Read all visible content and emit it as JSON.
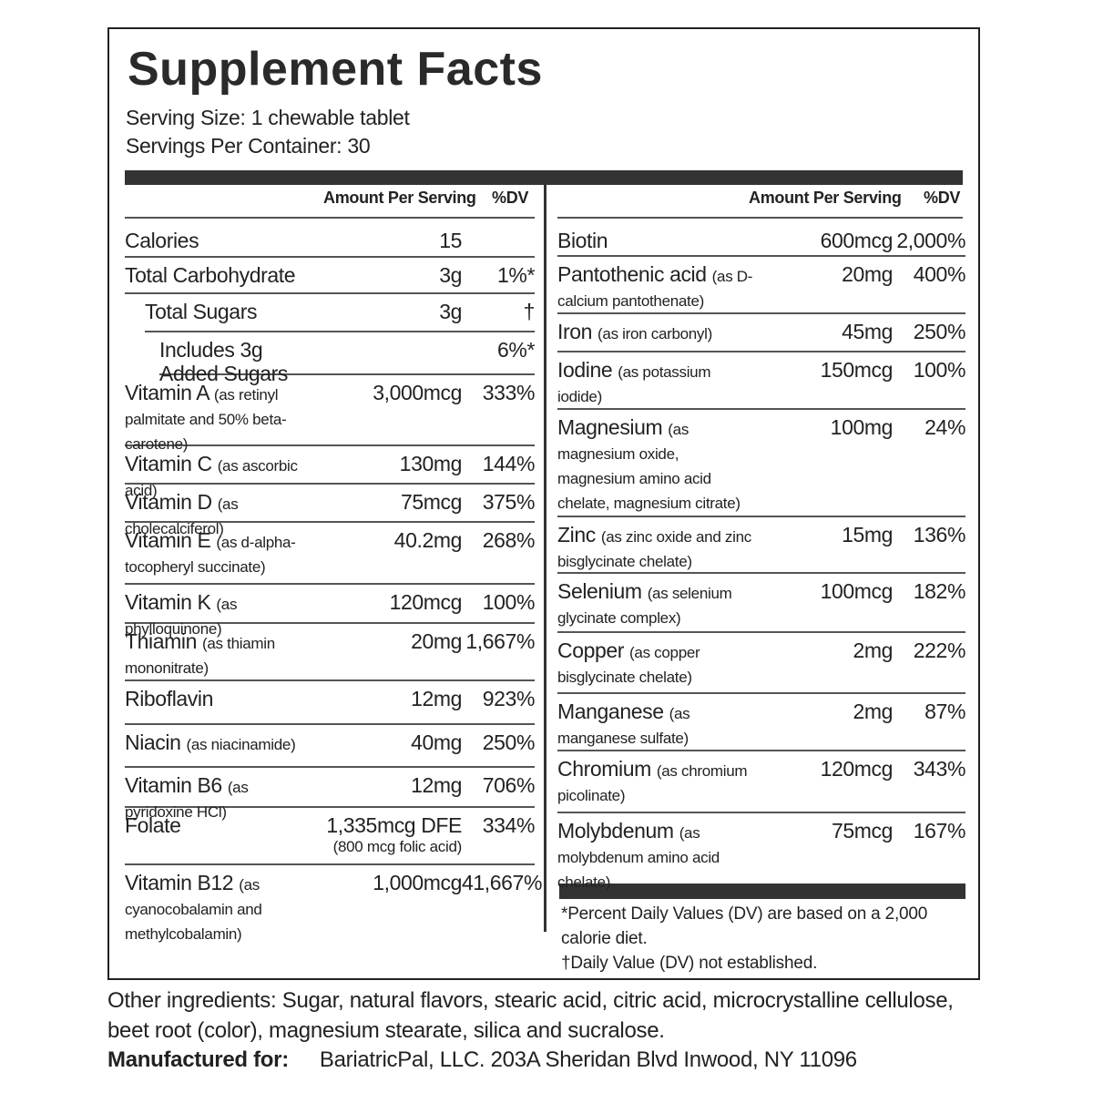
{
  "title": "Supplement Facts",
  "serving_size": "Serving Size: 1 chewable tablet",
  "servings_per_container": "Servings Per Container: 30",
  "left": {
    "header_amount": "Amount Per Serving",
    "header_dv": "%DV",
    "rows": [
      {
        "name": "Calories",
        "amount": "15"
      },
      {
        "name": "Total Carbohydrate",
        "amount": "3g",
        "dv": "1%*"
      },
      {
        "name": "Total Sugars",
        "amount": "3g",
        "dv": "†"
      },
      {
        "name": "Includes 3g Added Sugars",
        "dv": "6%*"
      },
      {
        "name": "Vitamin A",
        "note": "(as retinyl palmitate and 50% beta-carotene)",
        "amount": "3,000mcg",
        "dv": "333%"
      },
      {
        "name": "Vitamin C",
        "note": "(as ascorbic acid)",
        "amount": "130mg",
        "dv": "144%"
      },
      {
        "name": "Vitamin D",
        "note": "(as cholecalciferol)",
        "amount": "75mcg",
        "dv": "375%"
      },
      {
        "name": "Vitamin E",
        "note": "(as d-alpha-tocopheryl succinate)",
        "amount": "40.2mg",
        "dv": "268%"
      },
      {
        "name": "Vitamin K",
        "note": "(as phylloquinone)",
        "amount": "120mcg",
        "dv": "100%"
      },
      {
        "name": "Thiamin",
        "note": "(as thiamin mononitrate)",
        "amount": "20mg",
        "dv": "1,667%"
      },
      {
        "name": "Riboflavin",
        "amount": "12mg",
        "dv": "923%"
      },
      {
        "name": "Niacin",
        "note": "(as niacinamide)",
        "amount": "40mg",
        "dv": "250%"
      },
      {
        "name": "Vitamin B6",
        "note": "(as pyridoxine HCl)",
        "amount": "12mg",
        "dv": "706%"
      },
      {
        "name": "Folate",
        "amount": "1,335mcg DFE",
        "amount_note": "(800 mcg folic acid)",
        "dv": "334%"
      },
      {
        "name": "Vitamin B12",
        "note": "(as cyanocobalamin and methylcobalamin)",
        "amount": "1,000mcg",
        "dv": "41,667%"
      }
    ]
  },
  "right": {
    "header_amount": "Amount Per Serving",
    "header_dv": "%DV",
    "rows": [
      {
        "name": "Biotin",
        "amount": "600mcg",
        "dv": "2,000%"
      },
      {
        "name": "Pantothenic acid",
        "note": "(as D-calcium pantothenate)",
        "amount": "20mg",
        "dv": "400%"
      },
      {
        "name": "Iron",
        "note": "(as iron carbonyl)",
        "amount": "45mg",
        "dv": "250%"
      },
      {
        "name": "Iodine",
        "note": "(as potassium iodide)",
        "amount": "150mcg",
        "dv": "100%"
      },
      {
        "name": "Magnesium",
        "note": "(as magnesium oxide, magnesium amino acid chelate, magnesium citrate)",
        "amount": "100mg",
        "dv": "24%"
      },
      {
        "name": "Zinc",
        "note": "(as zinc oxide and zinc bisglycinate chelate)",
        "amount": "15mg",
        "dv": "136%"
      },
      {
        "name": "Selenium",
        "note": "(as selenium glycinate complex)",
        "amount": "100mcg",
        "dv": "182%"
      },
      {
        "name": "Copper",
        "note": "(as copper bisglycinate chelate)",
        "amount": "2mg",
        "dv": "222%"
      },
      {
        "name": "Manganese",
        "note": "(as manganese sulfate)",
        "amount": "2mg",
        "dv": "87%"
      },
      {
        "name": "Chromium",
        "note": "(as chromium picolinate)",
        "amount": "120mcg",
        "dv": "343%"
      },
      {
        "name": "Molybdenum",
        "note": "(as molybdenum amino acid chelate)",
        "amount": "75mcg",
        "dv": "167%"
      }
    ]
  },
  "footnotes": [
    "*Percent Daily Values (DV) are based on a 2,000 calorie diet.",
    "†Daily Value (DV) not established."
  ],
  "other_ingredients": "Other ingredients: Sugar, natural flavors, stearic acid, citric acid, microcrystalline cellulose, beet root (color), magnesium stearate, silica and sucralose.",
  "manufacturer_label": "Manufactured for:",
  "manufacturer": "BariatricPal, LLC. 203A Sheridan Blvd  Inwood, NY 11096"
}
